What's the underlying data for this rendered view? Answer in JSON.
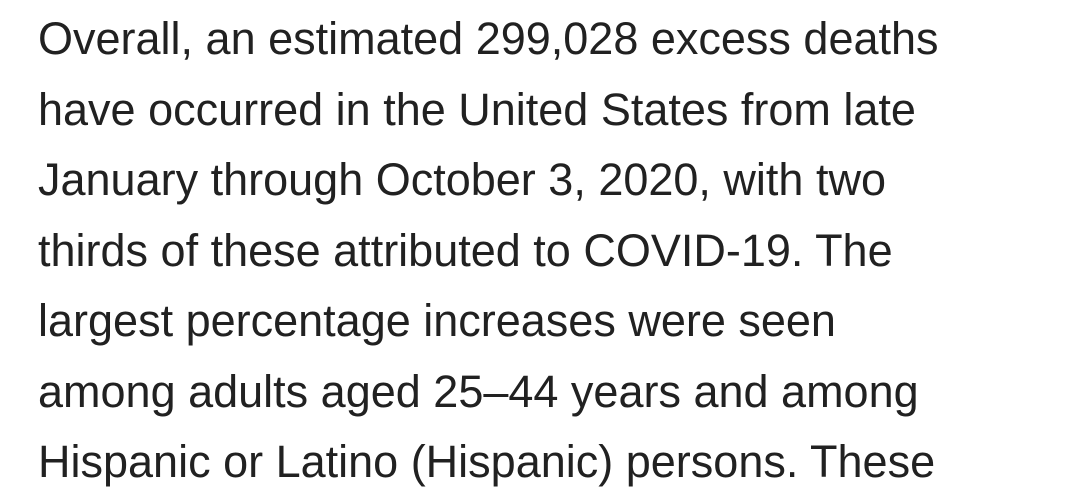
{
  "page": {
    "background_color": "#ffffff",
    "text_color": "#212121"
  },
  "paragraph": {
    "full_text": "Overall, an estimated 299,028 excess deaths have occurred in the United States from late January through October 3, 2020, with two thirds of these attributed to COVID-19. The largest percentage increases were seen among adults aged 25–44 years and among Hispanic or Latino (Hispanic) persons. These",
    "lines": [
      "Overall, an estimated 299,028 excess deaths",
      "have occurred in the United States from late",
      "January through October 3, 2020, with two",
      "thirds of these attributed to COVID-19. The",
      "largest percentage increases were seen",
      "among adults aged 25–44 years and among",
      "Hispanic or Latino (Hispanic) persons. These"
    ]
  }
}
